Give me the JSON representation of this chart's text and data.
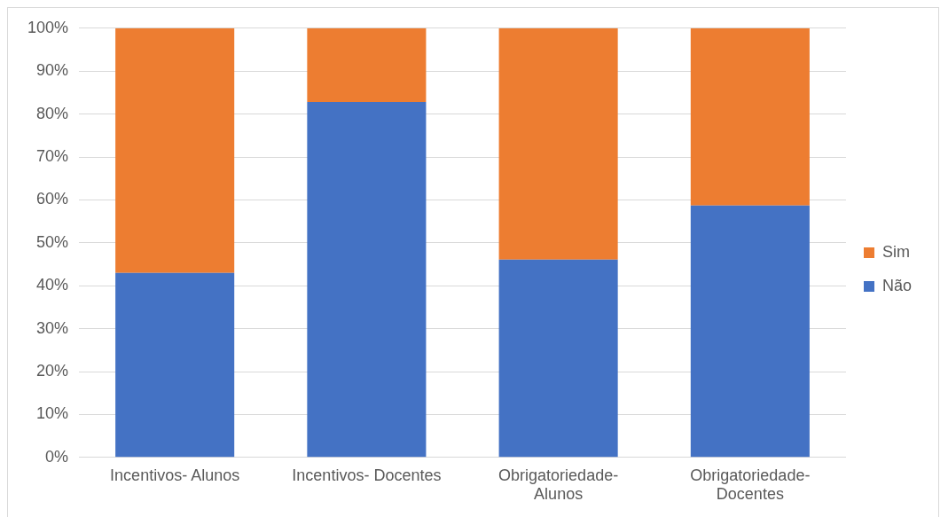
{
  "chart_data": {
    "type": "bar",
    "stacked": true,
    "categories": [
      "Incentivos- Alunos",
      "Incentivos- Docentes",
      "Obrigatoriedade- Alunos",
      "Obrigatoriedade- Docentes"
    ],
    "series": [
      {
        "name": "Não",
        "color": "#4472c4",
        "values": [
          43,
          82.8,
          46.1,
          58.7
        ]
      },
      {
        "name": "Sim",
        "color": "#ed7d31",
        "values": [
          57,
          17.2,
          53.9,
          41.3
        ]
      }
    ],
    "ylim": [
      0,
      100
    ],
    "yticks": [
      {
        "value": 0,
        "label": "0%"
      },
      {
        "value": 10,
        "label": "10%"
      },
      {
        "value": 20,
        "label": "20%"
      },
      {
        "value": 30,
        "label": "30%"
      },
      {
        "value": 40,
        "label": "40%"
      },
      {
        "value": 50,
        "label": "50%"
      },
      {
        "value": 60,
        "label": "60%"
      },
      {
        "value": 70,
        "label": "70%"
      },
      {
        "value": 80,
        "label": "80%"
      },
      {
        "value": 90,
        "label": "90%"
      },
      {
        "value": 100,
        "label": "100%"
      }
    ],
    "grid": "y",
    "legend": "right"
  }
}
